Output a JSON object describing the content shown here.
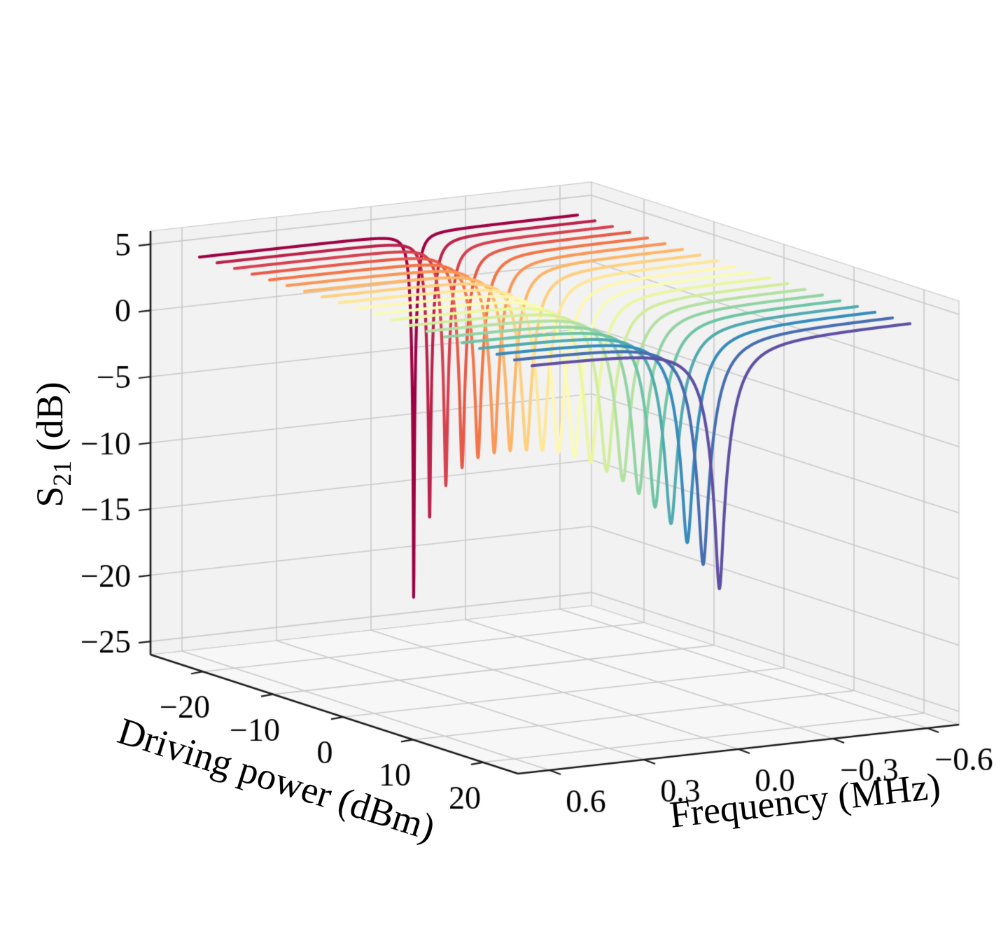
{
  "chart_data": {
    "type": "line",
    "subtype": "3d-waterfall-spectra",
    "title": "",
    "baseline_dB": 4.2,
    "freq_span_MHz": [
      0.6,
      -0.6
    ],
    "model": "S21(f) = baseline_dB + 20*log10| 1 - (1 - 10^((min_dB-baseline_dB)/20)) / (1 + 2i(f - f0)/fwhm) |",
    "grid": true,
    "colormap": {
      "name": "Spectral",
      "anchors": [
        "#9e0142",
        "#d53e4f",
        "#f46d43",
        "#fdae61",
        "#fee08b",
        "#ffffbf",
        "#e6f598",
        "#abdda4",
        "#66c2a5",
        "#3288bd",
        "#5e4fa2"
      ]
    },
    "style": {
      "pane_color": "#f2f2f2",
      "grid_color": "#c9c9c9",
      "spine_color": "#1a1a1a",
      "tick_label_color": "#000000",
      "line_width": 4.2,
      "tick_font_px": 46
    },
    "axes": {
      "power": {
        "label": "Driving power (dBm)",
        "range": [
          -27.5,
          25
        ],
        "ticks": [
          {
            "value": -20,
            "label": "−20"
          },
          {
            "value": -10,
            "label": "−10"
          },
          {
            "value": 0,
            "label": "0"
          },
          {
            "value": 10,
            "label": "10"
          },
          {
            "value": 20,
            "label": "20"
          }
        ]
      },
      "frequency": {
        "label": "Frequency (MHz)",
        "range": [
          0.7,
          -0.7
        ],
        "ticks": [
          {
            "value": 0.6,
            "label": "0.6"
          },
          {
            "value": 0.3,
            "label": "0.3"
          },
          {
            "value": 0.0,
            "label": "0.0"
          },
          {
            "value": -0.3,
            "label": "−0.3"
          },
          {
            "value": -0.6,
            "label": "−0.6"
          }
        ]
      },
      "s21": {
        "label_main": "S",
        "label_sub": "21",
        "label_unit": " (dB)",
        "range": [
          -26,
          6
        ],
        "ticks": [
          {
            "value": 5,
            "label": "5"
          },
          {
            "value": 0,
            "label": "0"
          },
          {
            "value": -5,
            "label": "−5"
          },
          {
            "value": -10,
            "label": "−10"
          },
          {
            "value": -15,
            "label": "−15"
          },
          {
            "value": -20,
            "label": "−20"
          },
          {
            "value": -25,
            "label": "−25"
          }
        ]
      }
    },
    "series": [
      {
        "power_dBm": -25.0,
        "color": "#9e0142",
        "f0_MHz": -0.08,
        "min_dB": -24.0,
        "fwhm_MHz": 0.035
      },
      {
        "power_dBm": -22.5,
        "color": "#bb2149",
        "f0_MHz": -0.075,
        "min_dB": -17.0,
        "fwhm_MHz": 0.045
      },
      {
        "power_dBm": -20.0,
        "color": "#d7404e",
        "f0_MHz": -0.071,
        "min_dB": -14.0,
        "fwhm_MHz": 0.055
      },
      {
        "power_dBm": -17.5,
        "color": "#e75948",
        "f0_MHz": -0.067,
        "min_dB": -12.2,
        "fwhm_MHz": 0.065
      },
      {
        "power_dBm": -15.0,
        "color": "#f57446",
        "f0_MHz": -0.062,
        "min_dB": -11.0,
        "fwhm_MHz": 0.075
      },
      {
        "power_dBm": -12.5,
        "color": "#fa9656",
        "f0_MHz": -0.058,
        "min_dB": -10.2,
        "fwhm_MHz": 0.082
      },
      {
        "power_dBm": -10.0,
        "color": "#fdb668",
        "f0_MHz": -0.053,
        "min_dB": -9.6,
        "fwhm_MHz": 0.089
      },
      {
        "power_dBm": -7.5,
        "color": "#fed07e",
        "f0_MHz": -0.049,
        "min_dB": -9.1,
        "fwhm_MHz": 0.095
      },
      {
        "power_dBm": -5.0,
        "color": "#fee796",
        "f0_MHz": -0.044,
        "min_dB": -8.7,
        "fwhm_MHz": 0.101
      },
      {
        "power_dBm": -2.5,
        "color": "#fff7b1",
        "f0_MHz": -0.04,
        "min_dB": -8.4,
        "fwhm_MHz": 0.107
      },
      {
        "power_dBm": 0.0,
        "color": "#f8fcb5",
        "f0_MHz": -0.035,
        "min_dB": -8.3,
        "fwhm_MHz": 0.112
      },
      {
        "power_dBm": 2.5,
        "color": "#ebf7a0",
        "f0_MHz": -0.031,
        "min_dB": -8.3,
        "fwhm_MHz": 0.117
      },
      {
        "power_dBm": 5.0,
        "color": "#d3ed9c",
        "f0_MHz": -0.026,
        "min_dB": -8.5,
        "fwhm_MHz": 0.122
      },
      {
        "power_dBm": 7.5,
        "color": "#b4e1a2",
        "f0_MHz": -0.022,
        "min_dB": -8.8,
        "fwhm_MHz": 0.127
      },
      {
        "power_dBm": 10.0,
        "color": "#92d3a4",
        "f0_MHz": -0.017,
        "min_dB": -9.3,
        "fwhm_MHz": 0.132
      },
      {
        "power_dBm": 12.5,
        "color": "#6dc5a5",
        "f0_MHz": -0.013,
        "min_dB": -9.9,
        "fwhm_MHz": 0.137
      },
      {
        "power_dBm": 15.0,
        "color": "#50aaaf",
        "f0_MHz": -0.008,
        "min_dB": -10.7,
        "fwhm_MHz": 0.142
      },
      {
        "power_dBm": 17.5,
        "color": "#358bbc",
        "f0_MHz": -0.004,
        "min_dB": -11.7,
        "fwhm_MHz": 0.147
      },
      {
        "power_dBm": 20.0,
        "color": "#476db0",
        "f0_MHz": 0.001,
        "min_dB": -12.9,
        "fwhm_MHz": 0.151
      },
      {
        "power_dBm": 22.5,
        "color": "#5e4fa2",
        "f0_MHz": 0.005,
        "min_dB": -14.3,
        "fwhm_MHz": 0.155
      }
    ]
  }
}
